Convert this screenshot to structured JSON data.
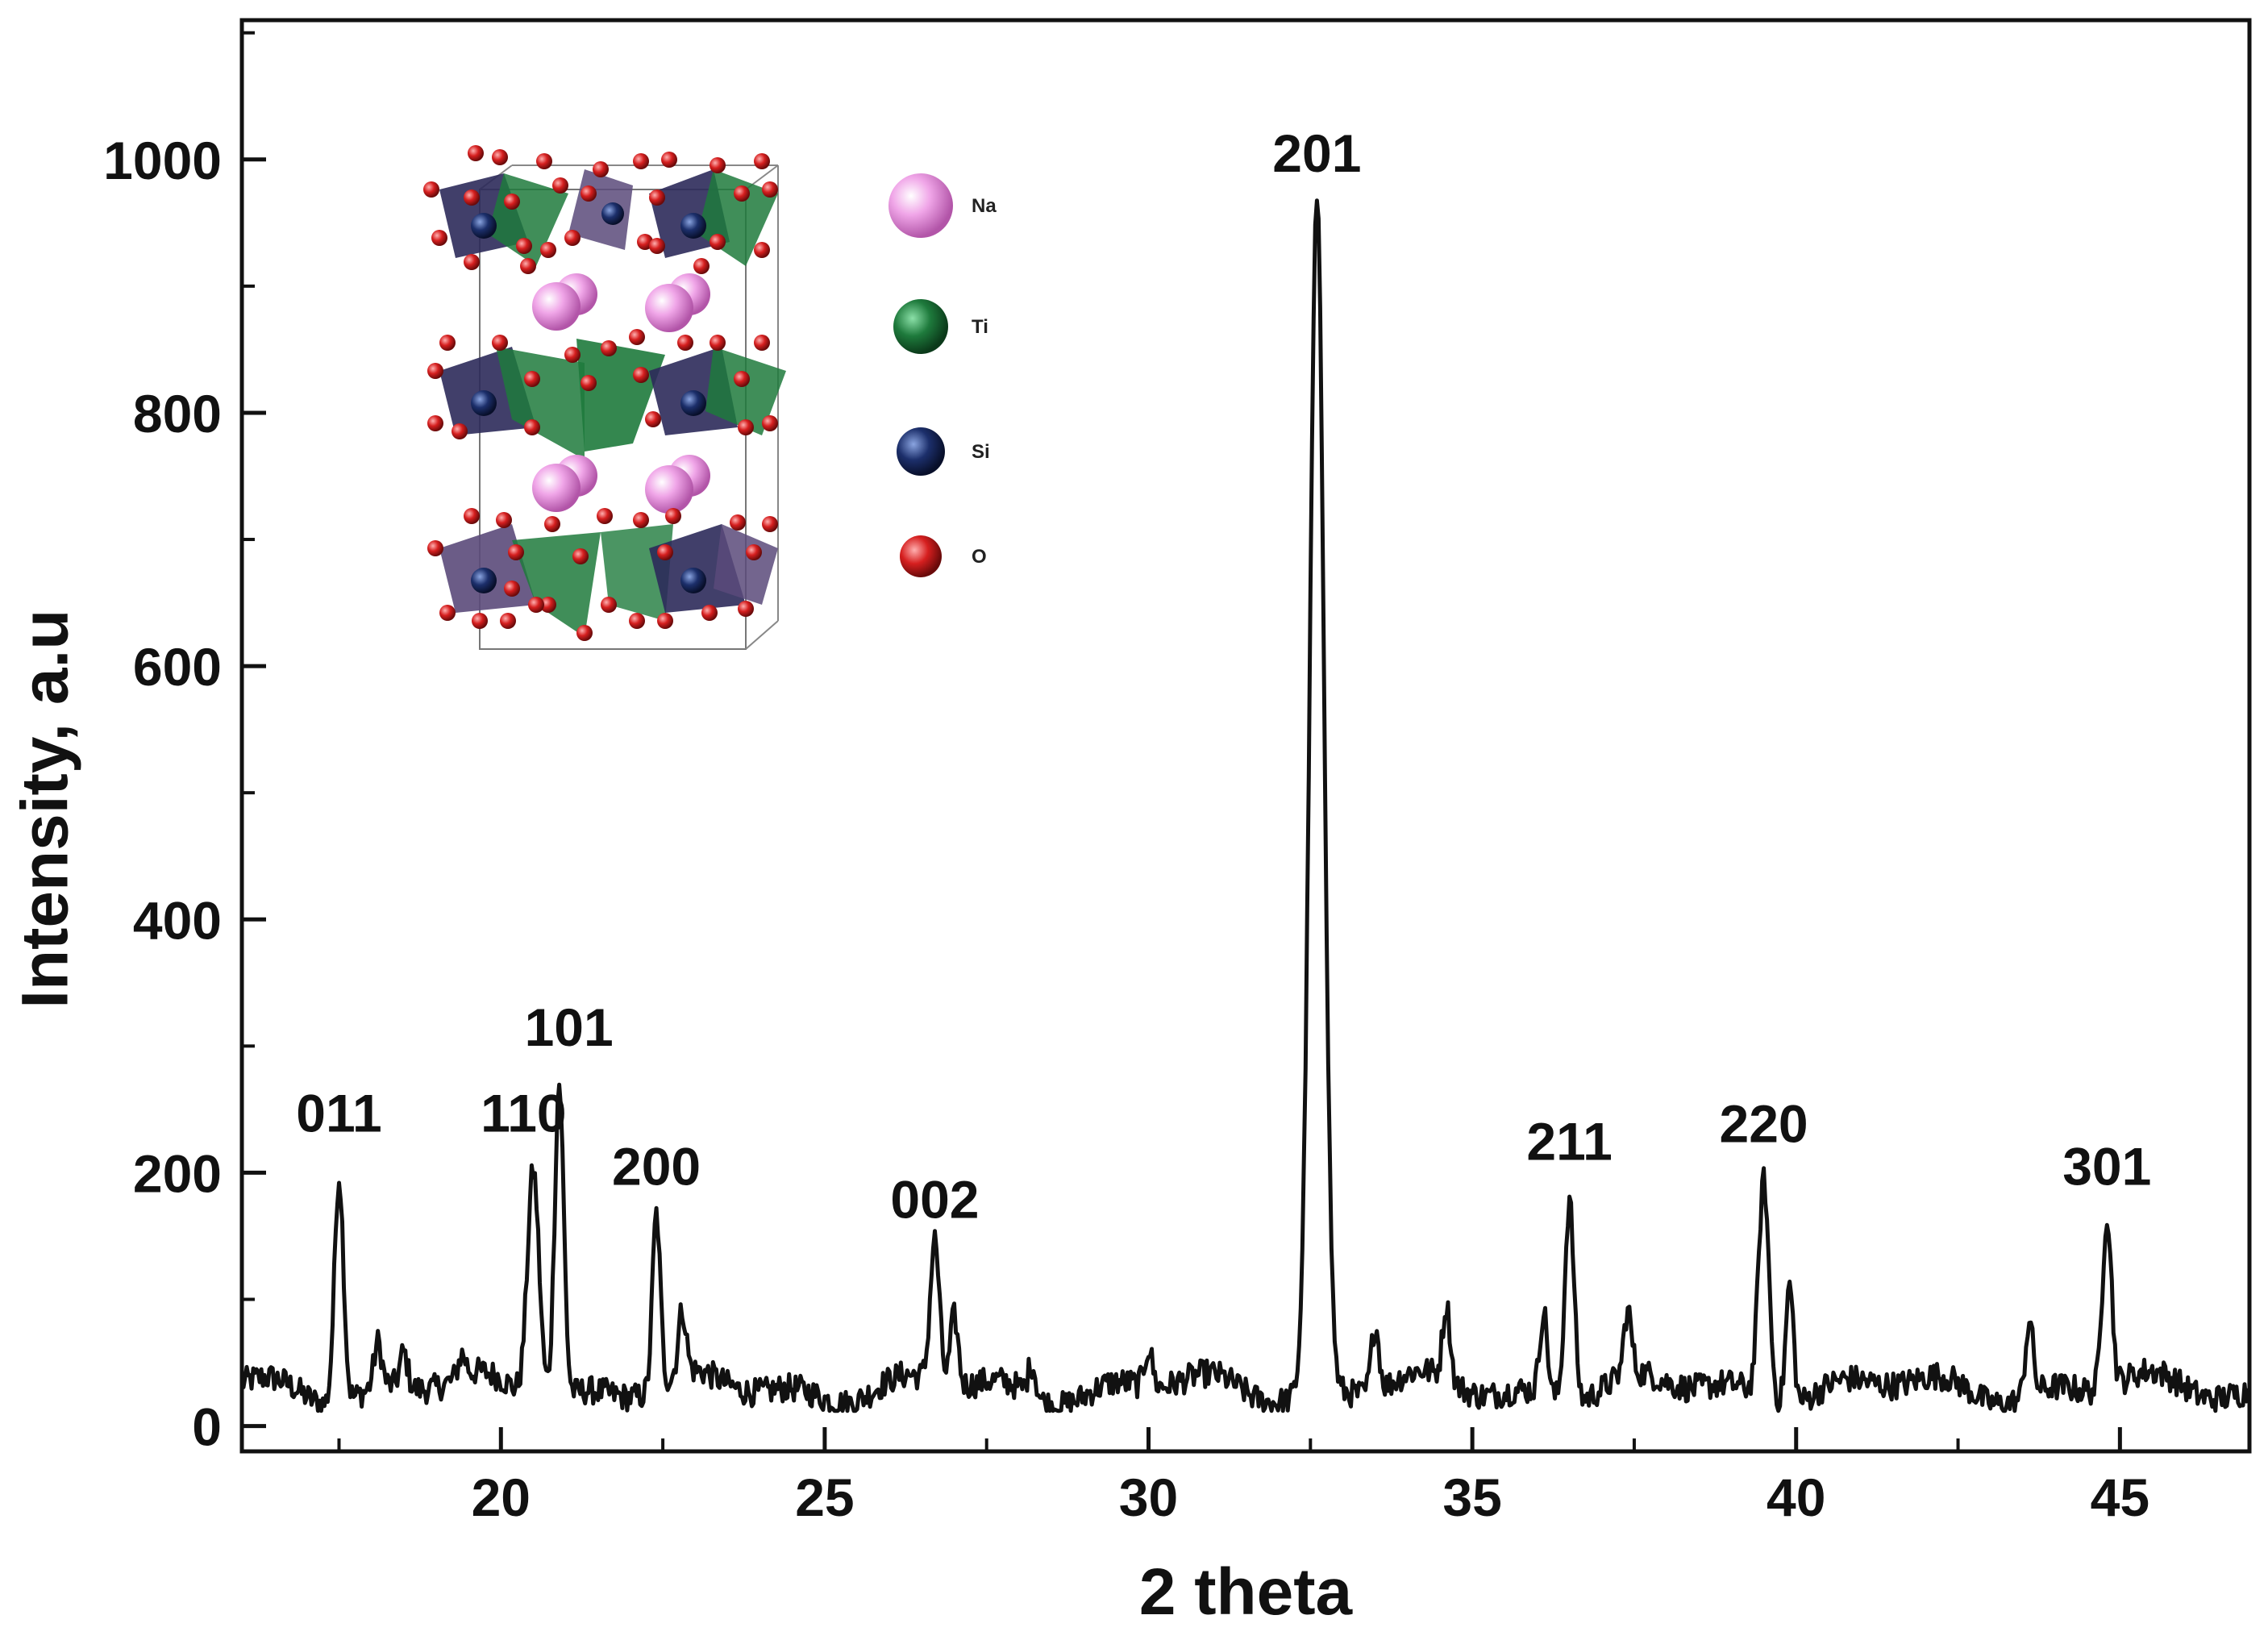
{
  "chart_data": {
    "type": "line",
    "xlabel": "2 theta",
    "ylabel": "Intensity, a.u",
    "xlim": [
      16,
      47
    ],
    "ylim": [
      0,
      1000
    ],
    "x_ticks": [
      20,
      25,
      30,
      35,
      40,
      45
    ],
    "y_ticks": [
      0,
      200,
      400,
      600,
      800,
      1000
    ],
    "grid": false,
    "baseline_intensity": 30,
    "peaks": [
      {
        "label": "011",
        "x": 17.5,
        "y": 210,
        "width": 0.07
      },
      {
        "label": "110",
        "x": 20.5,
        "y": 210,
        "width": 0.09
      },
      {
        "label": "101",
        "x": 20.9,
        "y": 278,
        "width": 0.07
      },
      {
        "label": "200",
        "x": 22.4,
        "y": 168,
        "width": 0.06
      },
      {
        "label": "002",
        "x": 26.7,
        "y": 142,
        "width": 0.07
      },
      {
        "label": "201",
        "x": 32.6,
        "y": 968,
        "width": 0.11
      },
      {
        "label": "211",
        "x": 36.5,
        "y": 188,
        "width": 0.07
      },
      {
        "label": "220",
        "x": 39.5,
        "y": 202,
        "width": 0.08
      },
      {
        "label": "301",
        "x": 44.8,
        "y": 168,
        "width": 0.07
      }
    ],
    "minor_peaks": [
      {
        "x": 18.1,
        "y": 65
      },
      {
        "x": 18.5,
        "y": 57
      },
      {
        "x": 19.4,
        "y": 47
      },
      {
        "x": 22.8,
        "y": 80
      },
      {
        "x": 27.0,
        "y": 85
      },
      {
        "x": 28.2,
        "y": 55
      },
      {
        "x": 30.0,
        "y": 60
      },
      {
        "x": 33.5,
        "y": 82
      },
      {
        "x": 34.6,
        "y": 88
      },
      {
        "x": 36.1,
        "y": 95
      },
      {
        "x": 37.4,
        "y": 80
      },
      {
        "x": 39.9,
        "y": 125
      },
      {
        "x": 43.6,
        "y": 88
      }
    ],
    "inset": {
      "description": "crystal structure",
      "legend": [
        {
          "label": "Na",
          "color": "#e58ad9"
        },
        {
          "label": "Ti",
          "color": "#1e7a3c"
        },
        {
          "label": "Si",
          "color": "#1c2f6b"
        },
        {
          "label": "O",
          "color": "#d61f1f"
        }
      ]
    }
  }
}
